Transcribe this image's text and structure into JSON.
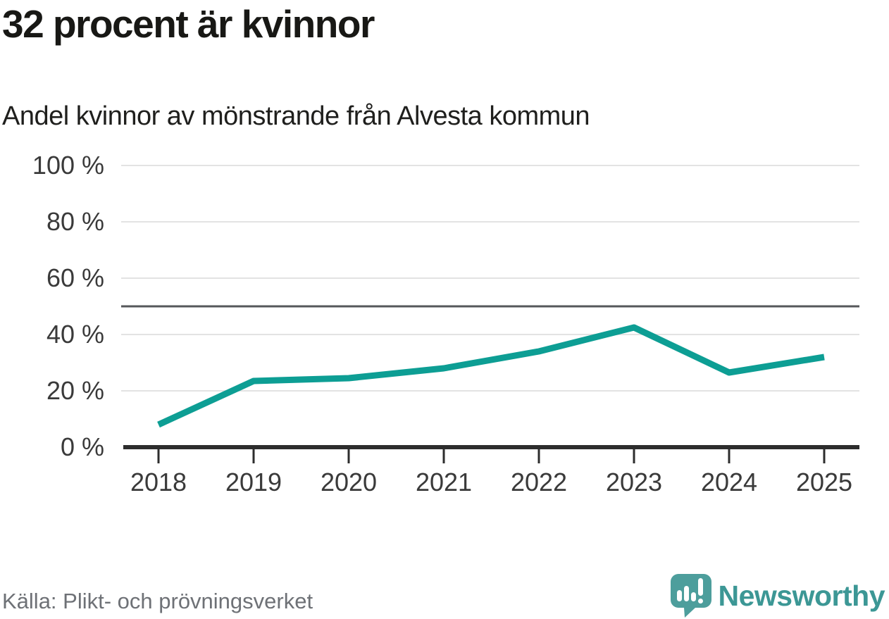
{
  "header": {
    "title": "32 procent är kvinnor",
    "subtitle": "Andel kvinnor av mönstrande från Alvesta kommun"
  },
  "footer": {
    "source": "Källa: Plikt- och prövningsverket",
    "brand": "Newsworthy"
  },
  "chart_data": {
    "type": "line",
    "title": "32 procent är kvinnor",
    "subtitle": "Andel kvinnor av mönstrande från Alvesta kommun",
    "categories": [
      "2018",
      "2019",
      "2020",
      "2021",
      "2022",
      "2023",
      "2024",
      "2025"
    ],
    "series": [
      {
        "name": "Andel kvinnor av mönstrande",
        "values": [
          8,
          23.5,
          24.5,
          28,
          34,
          42.5,
          26.5,
          32
        ]
      }
    ],
    "yticks": [
      0,
      20,
      40,
      60,
      80,
      100
    ],
    "ytick_labels": [
      "0 %",
      "20 %",
      "40 %",
      "60 %",
      "80 %",
      "100 %"
    ],
    "ylim": [
      0,
      100
    ],
    "reference_line": 50,
    "grid": true,
    "legend": false,
    "unit": "%"
  },
  "colors": {
    "line": "#0d9e94",
    "grid": "#e3e3e3",
    "reference_line": "#55575a",
    "axis": "#2d2d2d",
    "tick_label": "#3a3a3a",
    "source_text": "#6e7176",
    "brand_text": "#3c9795",
    "logo": "#4d9e9c"
  }
}
